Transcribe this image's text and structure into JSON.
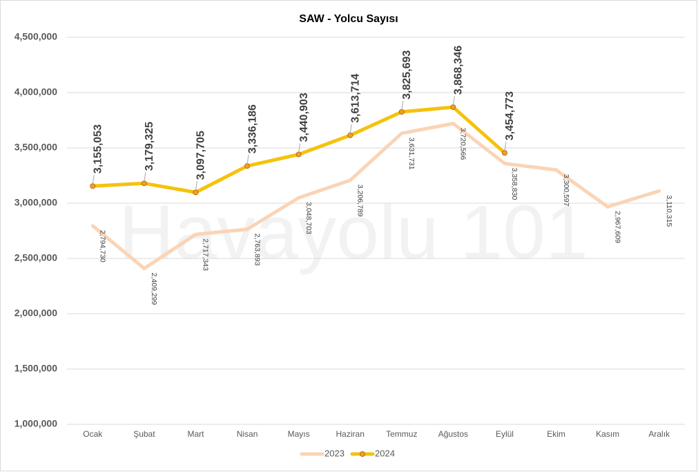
{
  "chart_data": {
    "type": "line",
    "title": "SAW - Yolcu Sayısı",
    "watermark": "Havayolu 101",
    "categories": [
      "Ocak",
      "Şubat",
      "Mart",
      "Nisan",
      "Mayıs",
      "Haziran",
      "Temmuz",
      "Ağustos",
      "Eylül",
      "Ekim",
      "Kasım",
      "Aralık"
    ],
    "series": [
      {
        "name": "2023",
        "color": "#fad4b6",
        "marker": false,
        "values": [
          2794730,
          2409299,
          2717343,
          2763893,
          3048703,
          3206789,
          3631731,
          3720566,
          3358830,
          3300597,
          2967609,
          3110315
        ],
        "value_labels": [
          "2,794,730",
          "2,409,299",
          "2,717,343",
          "2,763,893",
          "3,048,703",
          "3,206,789",
          "3,631,731",
          "3,720,566",
          "3,358,830",
          "3,300,597",
          "2,967,609",
          "3,110,315"
        ]
      },
      {
        "name": "2024",
        "color": "#f5c20c",
        "marker": true,
        "values": [
          3155053,
          3179325,
          3097705,
          3336186,
          3440903,
          3613714,
          3825693,
          3868346,
          3454773,
          null,
          null,
          null
        ],
        "value_labels": [
          "3,155,053",
          "3,179,325",
          "3,097,705",
          "3,336,186",
          "3,440,903",
          "3,613,714",
          "3,825,693",
          "3,868,346",
          "3,454,773",
          null,
          null,
          null
        ]
      }
    ],
    "ylim": [
      1000000,
      4500000
    ],
    "yticks": [
      {
        "value": 1000000,
        "label": "1,000,000"
      },
      {
        "value": 1500000,
        "label": "1,500,000"
      },
      {
        "value": 2000000,
        "label": "2,000,000"
      },
      {
        "value": 2500000,
        "label": "2,500,000"
      },
      {
        "value": 3000000,
        "label": "3,000,000"
      },
      {
        "value": 3500000,
        "label": "3,500,000"
      },
      {
        "value": 4000000,
        "label": "4,000,000"
      },
      {
        "value": 4500000,
        "label": "4,500,000"
      }
    ],
    "grid": true,
    "legend": "bottom"
  }
}
